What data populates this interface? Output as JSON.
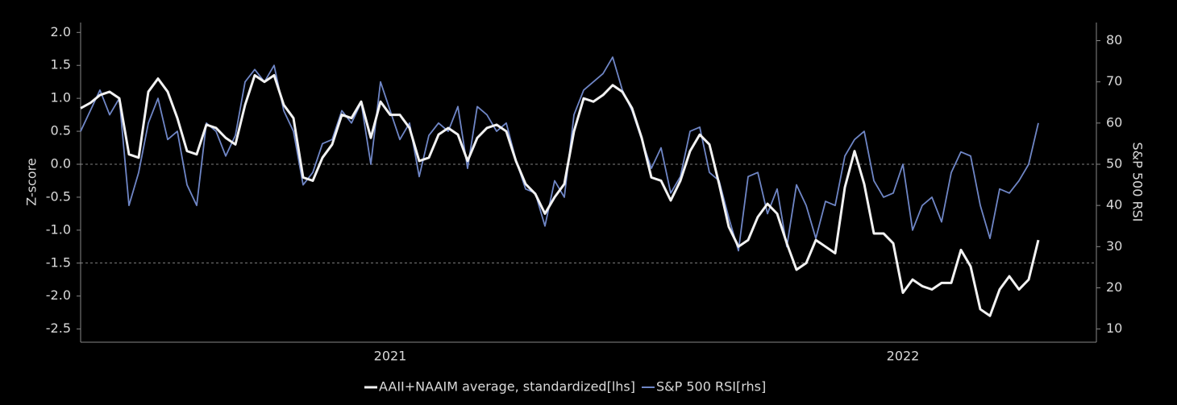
{
  "chart_data": {
    "type": "line",
    "ylabel": "Z-score",
    "y2label": "S&P 500 RSI",
    "categories": [
      null,
      null,
      null,
      null,
      null,
      null,
      null,
      null,
      null,
      null,
      null,
      null,
      null,
      null,
      null,
      null,
      null,
      null,
      null,
      null,
      null,
      null,
      null,
      null,
      null,
      null,
      null,
      null,
      null,
      null,
      null,
      null,
      "2021",
      null,
      null,
      null,
      null,
      null,
      null,
      null,
      null,
      null,
      null,
      null,
      null,
      null,
      null,
      null,
      null,
      null,
      null,
      null,
      null,
      null,
      null,
      null,
      null,
      null,
      null,
      null,
      null,
      null,
      null,
      null,
      null,
      null,
      null,
      null,
      null,
      null,
      null,
      null,
      null,
      null,
      null,
      null,
      null,
      null,
      null,
      null,
      null,
      null,
      null,
      null,
      null,
      "2022",
      null,
      null,
      null,
      null,
      null,
      null,
      null,
      null,
      null,
      null,
      null,
      null,
      null,
      null
    ],
    "series": [
      {
        "name": "AAII+NAAIM average, standardized[lhs]",
        "color": "#f2f2f2",
        "axis": "y",
        "values": [
          0.85,
          0.93,
          1.05,
          1.1,
          1.0,
          0.15,
          0.1,
          1.1,
          1.3,
          1.1,
          0.7,
          0.2,
          0.15,
          0.6,
          0.55,
          0.4,
          0.3,
          0.9,
          1.35,
          1.25,
          1.35,
          0.9,
          0.7,
          -0.2,
          -0.25,
          0.1,
          0.3,
          0.75,
          0.7,
          0.95,
          0.4,
          0.95,
          0.75,
          0.75,
          0.55,
          0.05,
          0.1,
          0.45,
          0.55,
          0.45,
          0.05,
          0.4,
          0.55,
          0.6,
          0.5,
          0.05,
          -0.3,
          -0.45,
          -0.75,
          -0.5,
          -0.3,
          0.5,
          1.0,
          0.95,
          1.05,
          1.2,
          1.1,
          0.85,
          0.4,
          -0.2,
          -0.25,
          -0.55,
          -0.25,
          0.2,
          0.45,
          0.3,
          -0.3,
          -0.95,
          -1.25,
          -1.15,
          -0.8,
          -0.6,
          -0.75,
          -1.2,
          -1.6,
          -1.5,
          -1.15,
          -1.25,
          -1.35,
          -0.35,
          0.2,
          -0.3,
          -1.05,
          -1.05,
          -1.2,
          -1.95,
          -1.75,
          -1.85,
          -1.9,
          -1.8,
          -1.8,
          -1.3,
          -1.55,
          -2.2,
          -2.3,
          -1.9,
          -1.7,
          -1.9,
          -1.75,
          -1.15
        ]
      },
      {
        "name": "S&P 500 RSI[rhs]",
        "color": "#6f86c6",
        "axis": "y2",
        "values": [
          58,
          63,
          68,
          62,
          66,
          40,
          48,
          60,
          66,
          56,
          58,
          45,
          40,
          60,
          58,
          52,
          57,
          70,
          73,
          70,
          74,
          63,
          58,
          45,
          48,
          55,
          56,
          63,
          60,
          65,
          50,
          70,
          63,
          56,
          60,
          47,
          57,
          60,
          58,
          64,
          49,
          64,
          62,
          58,
          60,
          51,
          44,
          43,
          35,
          46,
          42,
          62,
          68,
          70,
          72,
          76,
          68,
          63,
          56,
          49,
          54,
          43,
          47,
          58,
          59,
          48,
          46,
          37,
          29,
          47,
          48,
          38,
          44,
          30,
          45,
          40,
          32,
          41,
          40,
          52,
          56,
          58,
          46,
          42,
          43,
          50,
          34,
          40,
          42,
          36,
          48,
          53,
          52,
          40,
          32,
          44,
          43,
          46,
          50,
          60
        ]
      }
    ],
    "ylim": [
      -2.7,
      2.15
    ],
    "yticks": [
      {
        "value": 2,
        "label": "2.0"
      },
      1.5,
      {
        "value": 1,
        "label": "1.0"
      },
      0.5,
      {
        "value": 0,
        "label": "0.0"
      },
      -0.5,
      {
        "value": -1,
        "label": "-1.0"
      },
      -1.5,
      {
        "value": -2,
        "label": "-2.0"
      },
      -2.5
    ],
    "y2lim": [
      6.8,
      84.4
    ],
    "y2ticks": [
      10,
      20,
      30,
      40,
      50,
      60,
      70,
      80
    ],
    "hlines": [
      0,
      -1.5
    ],
    "legend": "bottom"
  }
}
